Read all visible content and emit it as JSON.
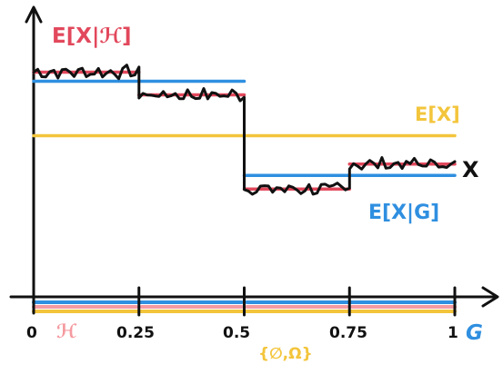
{
  "labels": {
    "cond_h": "E[X|ℋ]",
    "cond_g": "E[X|G]",
    "expect": "E[X]",
    "x_var": "X",
    "h_sigma": "ℋ",
    "g_sigma": "G",
    "trivial_sigma": "{∅,Ω}"
  },
  "ticks": [
    "0",
    "0.25",
    "0.5",
    "0.75",
    "1"
  ],
  "colors": {
    "ink": "#111111",
    "red": "#e2485c",
    "blue": "#2f8fe0",
    "yellow": "#f3c53c",
    "pink": "#f59aa0"
  },
  "chart_data": {
    "type": "line",
    "x_range": [
      0,
      1
    ],
    "partitions": {
      "H": [
        0,
        0.25,
        0.5,
        0.75,
        1
      ],
      "G": [
        0,
        0.5,
        1
      ],
      "trivial": [
        0,
        1
      ]
    },
    "series": [
      {
        "name": "E[X|ℋ]",
        "x": [
          0,
          0.25,
          0.5,
          0.75,
          1
        ],
        "y": [
          0.86,
          0.66,
          -0.17,
          0.05,
          0.05
        ],
        "step": true
      },
      {
        "name": "E[X|G]",
        "x": [
          0,
          0.5,
          1
        ],
        "y": [
          0.78,
          -0.05,
          -0.05
        ],
        "step": true
      },
      {
        "name": "E[X]",
        "x": [
          0,
          1
        ],
        "y": [
          0.3,
          0.3
        ]
      }
    ]
  }
}
